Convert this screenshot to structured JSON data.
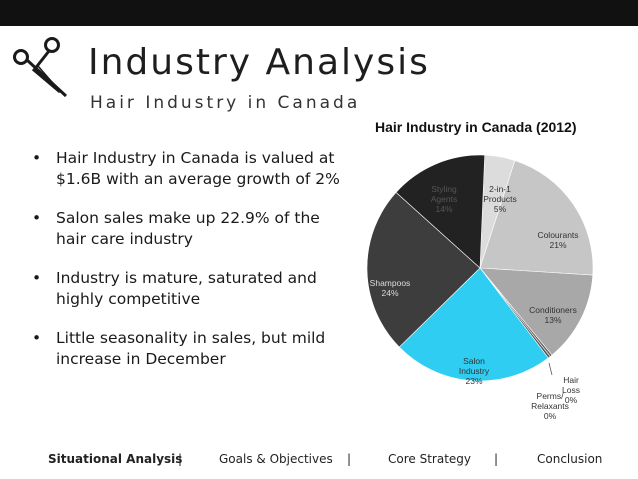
{
  "header": {
    "title": "Industry Analysis",
    "subtitle": "Hair Industry in Canada"
  },
  "bullets": [
    {
      "marker": "•",
      "text": "Hair Industry in Canada is valued at $1.6B with an average growth of 2%"
    },
    {
      "marker": "•",
      "text": "Salon sales make up 22.9% of the hair care industry"
    },
    {
      "marker": "•",
      "text": "Industry is mature, saturated and highly competitive"
    },
    {
      "marker": "•",
      "text": "Little seasonality in sales, but mild increase in December"
    }
  ],
  "chart_data": {
    "type": "pie",
    "title": "Hair Industry in Canada (2012)",
    "slices": [
      {
        "label": "2-in-1 Products",
        "value": 5,
        "display": "5%",
        "color": "#dcdcdc"
      },
      {
        "label": "Colourants",
        "value": 21,
        "display": "21%",
        "color": "#c6c6c6"
      },
      {
        "label": "Conditioners",
        "value": 13,
        "display": "13%",
        "color": "#a8a8a8"
      },
      {
        "label": "Hair Loss",
        "value": 0,
        "display": "0%",
        "color": "#666666"
      },
      {
        "label": "Perms/ Relaxants",
        "value": 0,
        "display": "0%",
        "color": "#555555"
      },
      {
        "label": "Salon Industry",
        "value": 23,
        "display": "23%",
        "color": "#2fcdf2"
      },
      {
        "label": "Shampoos",
        "value": 24,
        "display": "24%",
        "color": "#3d3d3d"
      },
      {
        "label": "Styling Agents",
        "value": 14,
        "display": "14%",
        "color": "#222222"
      }
    ]
  },
  "footer": {
    "items": [
      "Situational Analysis",
      "Goals & Objectives",
      "Core Strategy",
      "Conclusion"
    ],
    "separator": "|"
  },
  "icons": {
    "logo": "scissors-icon"
  },
  "colors": {
    "top_bar": "#111111",
    "accent": "#2fcdf2"
  }
}
